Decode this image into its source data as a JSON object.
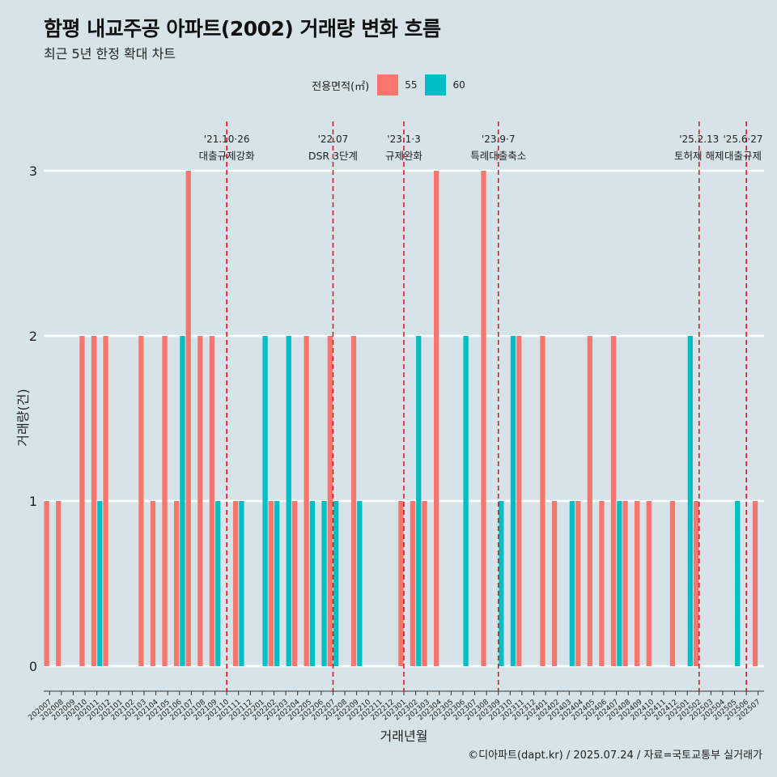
{
  "title": "함평 내교주공 아파트(2002) 거래량 변화 흐름",
  "subtitle": "최근 5년 한정 확대 차트",
  "legend": {
    "title": "전용면적(㎡)",
    "items": [
      {
        "label": "55",
        "color": "#f8766d"
      },
      {
        "label": "60",
        "color": "#00bfc4"
      }
    ]
  },
  "caption": "©디아파트(dapt.kr) / 2025.07.24 / 자료=국토교통부 실거래가",
  "chart_data": {
    "type": "bar",
    "title": "함평 내교주공 아파트(2002) 거래량 변화 흐름",
    "xlabel": "거래년월",
    "ylabel": "거래량(건)",
    "ylim": [
      0,
      3
    ],
    "yticks": [
      0,
      1,
      2,
      3
    ],
    "categories": [
      "202007",
      "202008",
      "202009",
      "202010",
      "202011",
      "202012",
      "202101",
      "202102",
      "202103",
      "202104",
      "202105",
      "202106",
      "202107",
      "202108",
      "202109",
      "202110",
      "202111",
      "202112",
      "202201",
      "202202",
      "202203",
      "202204",
      "202205",
      "202206",
      "202207",
      "202208",
      "202209",
      "202210",
      "202211",
      "202212",
      "202301",
      "202302",
      "202303",
      "202304",
      "202305",
      "202306",
      "202307",
      "202308",
      "202309",
      "202310",
      "202311",
      "202312",
      "202401",
      "202402",
      "202403",
      "202404",
      "202405",
      "202406",
      "202407",
      "202408",
      "202409",
      "202410",
      "202411",
      "202412",
      "202501",
      "202502",
      "202503",
      "202504",
      "202505",
      "202506",
      "202507"
    ],
    "series": [
      {
        "name": "55",
        "color": "#f8766d",
        "values": [
          1,
          1,
          0,
          2,
          2,
          2,
          0,
          0,
          2,
          1,
          2,
          1,
          3,
          2,
          2,
          0,
          1,
          0,
          0,
          1,
          0,
          1,
          2,
          0,
          2,
          0,
          2,
          0,
          0,
          0,
          1,
          1,
          1,
          3,
          0,
          0,
          0,
          3,
          0,
          0,
          2,
          0,
          2,
          1,
          0,
          1,
          2,
          1,
          2,
          1,
          1,
          1,
          0,
          1,
          0,
          1,
          0,
          0,
          0,
          0,
          1
        ]
      },
      {
        "name": "60",
        "color": "#00bfc4",
        "values": [
          0,
          0,
          0,
          0,
          1,
          0,
          0,
          0,
          0,
          0,
          0,
          2,
          0,
          0,
          1,
          0,
          1,
          0,
          2,
          1,
          2,
          0,
          1,
          1,
          1,
          0,
          1,
          0,
          0,
          0,
          0,
          2,
          0,
          0,
          0,
          2,
          0,
          0,
          1,
          2,
          0,
          0,
          0,
          0,
          1,
          0,
          0,
          0,
          1,
          0,
          0,
          0,
          0,
          0,
          2,
          0,
          0,
          0,
          1,
          0,
          0
        ]
      }
    ],
    "events": [
      {
        "month": "202110",
        "date": "'21.10·26",
        "label": "대출규제강화"
      },
      {
        "month": "202207",
        "date": "'22.07",
        "label": "DSR 3단계"
      },
      {
        "month": "202301",
        "date": "'23.1·3",
        "label": "규제완화"
      },
      {
        "month": "202309",
        "date": "'23.9·7",
        "label": "특례대출축소"
      },
      {
        "month": "202502",
        "date": "'25.2.13",
        "label": "토허제 해제"
      },
      {
        "month": "202506",
        "date": "'25.6·27",
        "label": "대출규제"
      }
    ]
  }
}
